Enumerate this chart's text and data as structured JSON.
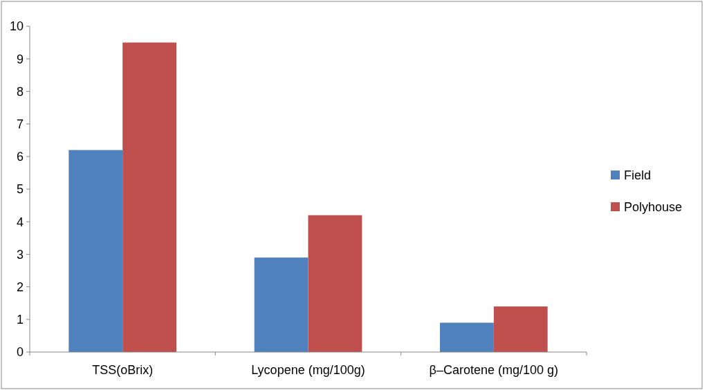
{
  "chart_data": {
    "type": "bar",
    "categories": [
      "TSS(oBrix)",
      "Lycopene (mg/100g)",
      "β–Carotene (mg/100 g)"
    ],
    "series": [
      {
        "name": "Field",
        "color": "#4f81bd",
        "values": [
          6.2,
          2.9,
          0.9
        ]
      },
      {
        "name": "Polyhouse",
        "color": "#c0504d",
        "values": [
          9.5,
          4.2,
          1.4
        ]
      }
    ],
    "ylim": [
      0,
      10
    ],
    "yticks": [
      0,
      1,
      2,
      3,
      4,
      5,
      6,
      7,
      8,
      9,
      10
    ],
    "grid": false,
    "legend": "right"
  }
}
